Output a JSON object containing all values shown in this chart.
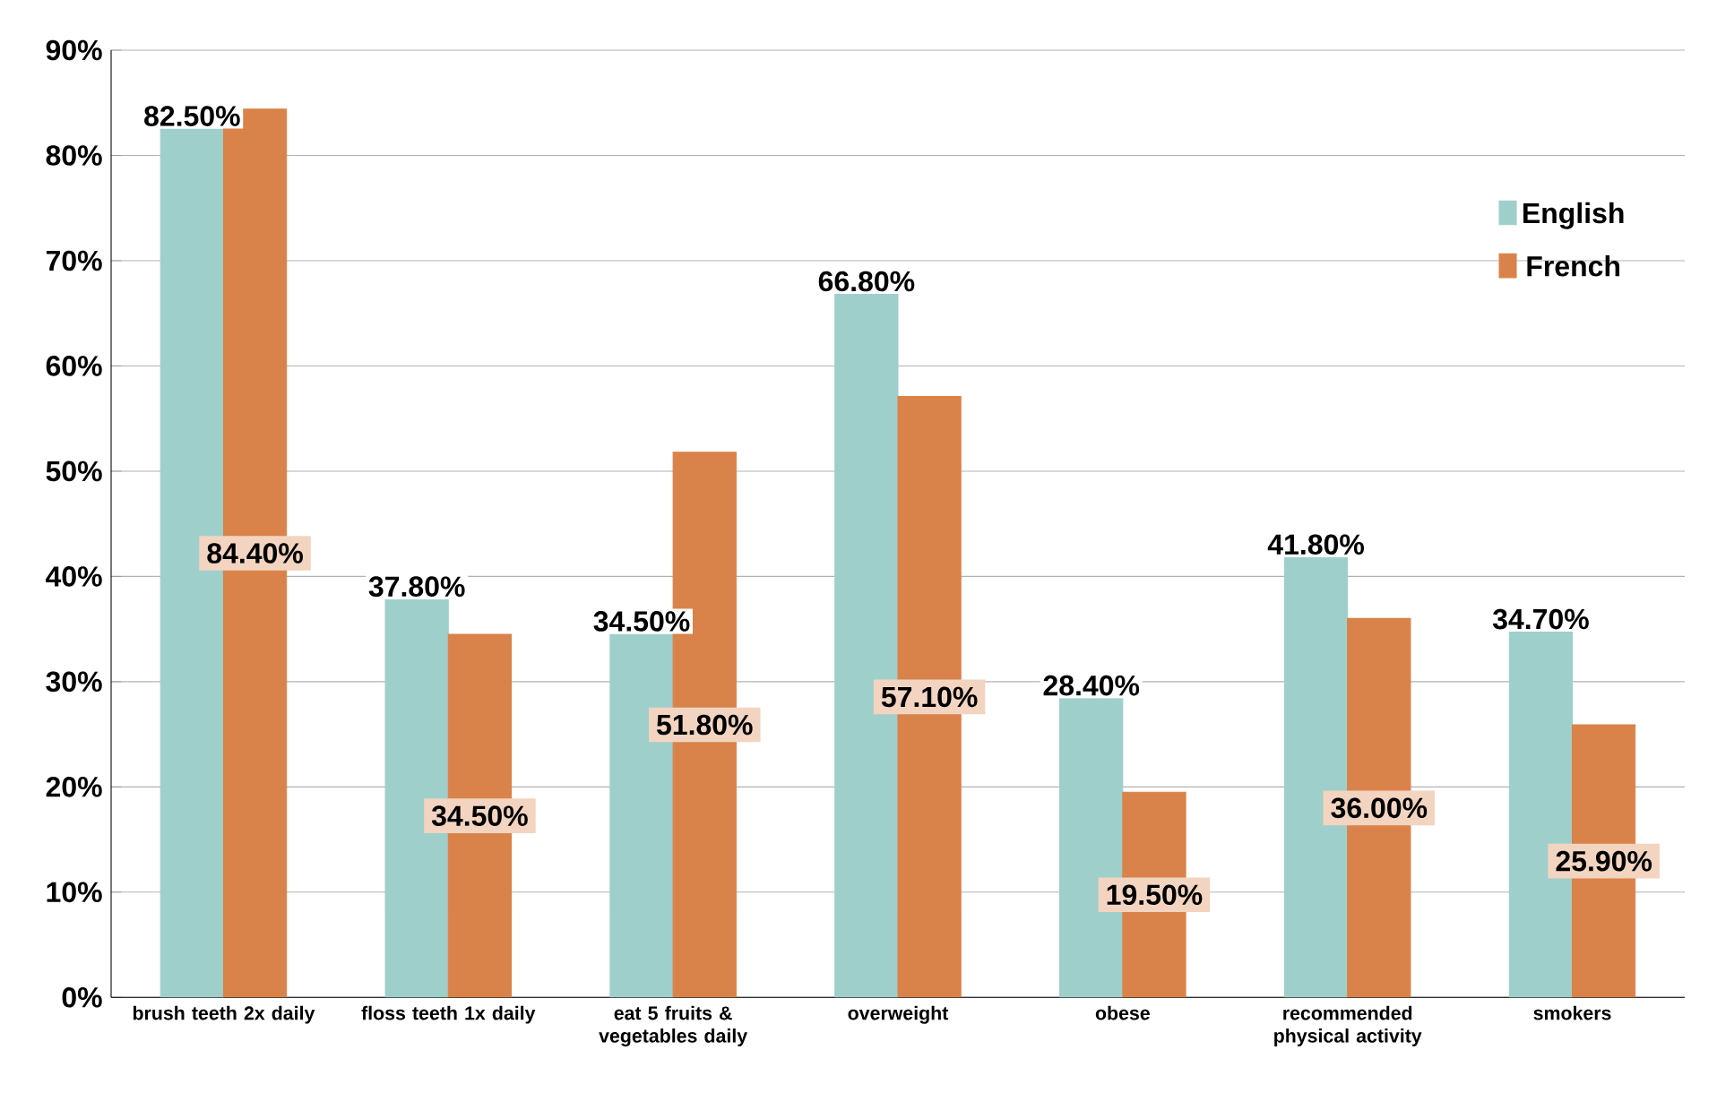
{
  "chart_data": {
    "type": "bar",
    "categories": [
      "brush teeth 2x daily",
      "floss teeth 1x daily",
      "eat 5 fruits & vegetables daily",
      "overweight",
      "obese",
      "recommended physical activity",
      "smokers"
    ],
    "series": [
      {
        "name": "English",
        "color": "#9fcfcb",
        "values": [
          82.5,
          37.8,
          34.5,
          66.8,
          28.4,
          41.8,
          34.7
        ],
        "value_labels": [
          "82.50%",
          "37.80%",
          "34.50%",
          "66.80%",
          "28.40%",
          "41.80%",
          "34.70%"
        ]
      },
      {
        "name": "French",
        "color": "#d9834a",
        "values": [
          84.4,
          34.5,
          51.8,
          57.1,
          19.5,
          36.0,
          25.9
        ],
        "value_labels": [
          "84.40%",
          "34.50%",
          "51.80%",
          "57.10%",
          "19.50%",
          "36.00%",
          "25.90%"
        ]
      }
    ],
    "ylim": [
      0,
      90
    ],
    "yticks": [
      {
        "value": 0,
        "label": "0%"
      },
      {
        "value": 10,
        "label": "10%"
      },
      {
        "value": 20,
        "label": "20%"
      },
      {
        "value": 30,
        "label": "30%"
      },
      {
        "value": 40,
        "label": "40%"
      },
      {
        "value": 50,
        "label": "50%"
      },
      {
        "value": 60,
        "label": "60%"
      },
      {
        "value": 70,
        "label": "70%"
      },
      {
        "value": 80,
        "label": "80%"
      },
      {
        "value": 90,
        "label": "90%"
      }
    ],
    "grid": "y",
    "legend": "top right"
  }
}
